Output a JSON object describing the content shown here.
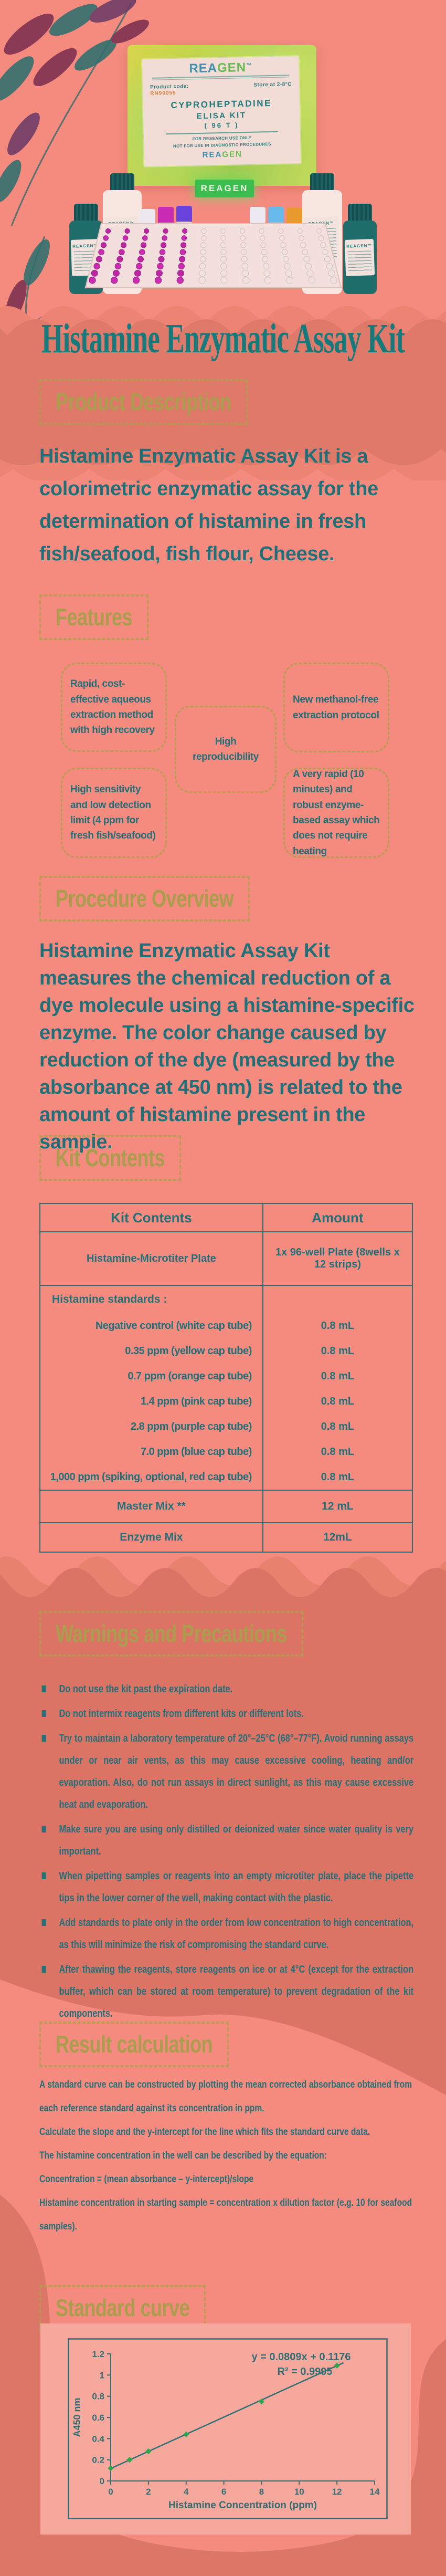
{
  "title": "Histamine Enzymatic Assay Kit",
  "colors": {
    "background_light": "#F48B7E",
    "background_dark": "#DC7667",
    "wave_fringe": "#EC8373",
    "heading_olive": "#AC9D4E",
    "text_teal": "#20707A",
    "table_border": "#2F6E74",
    "chart_point_green": "#2DA84D",
    "well_magenta": "#C72FAE",
    "badge_green": "#3BBE4F"
  },
  "photo": {
    "box": {
      "brand_rea": "REA",
      "brand_gen": "GEN",
      "brand_tm": "™",
      "product_code_label": "Product code:",
      "product_code": "RN99055",
      "store": "Store at 2-8°C",
      "name1": "CYPROHEPTADINE",
      "name2": "ELISA KIT",
      "name3": "( 96 T )",
      "fine1": "FOR RESEARCH USE ONLY",
      "fine2": "NOT FOR USE IN DIAGNOSTIC PROCEDURES",
      "brand2_rea": "REA",
      "brand2_gen": "GEN",
      "badge": "REAGEN"
    },
    "bottle_label": "REAGEN™"
  },
  "product_description": {
    "heading": "Product Description",
    "body": "Histamine Enzymatic Assay Kit is a colorimetric enzymatic assay for the determination of histamine in fresh fish/seafood, fish flour, Cheese."
  },
  "features": {
    "heading": "Features",
    "items": [
      {
        "text": "Rapid, cost-effective aqueous extraction method with high recovery"
      },
      {
        "text": "High reproducibility"
      },
      {
        "text": "New methanol-free extraction protocol"
      },
      {
        "text": "High sensitivity and low detection limit (4 ppm for fresh fish/seafood)"
      },
      {
        "text": "A very rapid (10 minutes) and robust enzyme-based assay which does not require heating"
      }
    ]
  },
  "procedure_overview": {
    "heading": "Procedure Overview",
    "body": "Histamine Enzymatic Assay Kit measures the chemical reduction of a dye molecule using a histamine-specific enzyme. The color change caused by reduction of the dye (measured by the absorbance at 450 nm) is related to the amount of histamine present in the sample."
  },
  "kit_contents": {
    "heading": "Kit Contents",
    "table": {
      "col1": "Kit Contents",
      "col2": "Amount"
    },
    "microtiter": {
      "name": "Histamine-Microtiter Plate",
      "amount": "1x 96-well Plate (8wells x 12 strips)"
    },
    "standards": {
      "label": "Histamine standards :",
      "items": [
        {
          "name": "Negative control (white cap tube)",
          "amount": "0.8 mL"
        },
        {
          "name": "0.35 ppm (yellow cap tube)",
          "amount": "0.8 mL"
        },
        {
          "name": "0.7 ppm (orange cap tube)",
          "amount": "0.8 mL"
        },
        {
          "name": "1.4 ppm (pink cap tube)",
          "amount": "0.8 mL"
        },
        {
          "name": "2.8 ppm (purple cap tube)",
          "amount": "0.8 mL"
        },
        {
          "name": "7.0 ppm (blue cap tube)",
          "amount": "0.8 mL"
        },
        {
          "name": "1,000 ppm (spiking, optional, red cap tube)",
          "amount": "0.8 mL"
        }
      ]
    },
    "master": {
      "name": "Master Mix **",
      "amount": "12 mL"
    },
    "enzyme": {
      "name": "Enzyme Mix",
      "amount": "12mL"
    }
  },
  "warnings": {
    "heading": "Warnings and Precautions",
    "bullets": [
      "Do not use the kit past the expiration date.",
      "Do not intermix reagents from different kits or different lots.",
      "Try to maintain a laboratory temperature of 20°–25°C (68°–77°F). Avoid running assays under or near air vents, as this may cause excessive cooling, heating and/or evaporation. Also, do not run assays in direct sunlight, as this may cause excessive heat and evaporation.",
      "Make sure you are using only distilled or deionized water since water quality is very important.",
      "When pipetting samples or reagents into an empty microtiter plate, place the pipette tips in the lower corner of the well, making contact with the plastic.",
      "Add standards to plate only in the order from low concentration to high concentration, as this will minimize the risk of compromising the standard curve.",
      "After thawing the reagents, store reagents on ice or at 4°C (except for the extraction buffer, which can be stored at room temperature) to prevent degradation of the kit components."
    ]
  },
  "result_calculation": {
    "heading": "Result calculation",
    "paragraphs": [
      "A standard curve can be constructed by plotting the mean corrected absorbance obtained from each reference standard against its concentration in ppm.",
      "Calculate the slope and the y-intercept for the line which fits the standard curve data.",
      "The histamine concentration in the well can be described by the equation:",
      "Concentration = (mean absorbance – y-intercept)/slope",
      "Histamine concentration in starting sample = concentration x dilution factor (e.g. 10 for seafood samples)."
    ]
  },
  "standard_curve": {
    "heading": "Standard curve",
    "chart_data": {
      "type": "scatter",
      "x": [
        0,
        1,
        2,
        4,
        8,
        12
      ],
      "y": [
        0.12,
        0.2,
        0.28,
        0.44,
        0.75,
        1.09
      ],
      "trendline": {
        "slope": 0.0809,
        "intercept": 0.1176,
        "x_start": 0,
        "x_end": 12.35
      },
      "equation_label": "y = 0.0809x + 0.1176",
      "r_squared_label": "R² = 0.9995",
      "xlabel": "Histamine Concentration (ppm)",
      "ylabel": "A450 nm",
      "xlim": [
        0,
        14
      ],
      "ylim": [
        0,
        1.2
      ],
      "xticks": [
        "0",
        "2",
        "4",
        "6",
        "8",
        "10",
        "12",
        "14"
      ],
      "yticks": [
        "0",
        "0.2",
        "0.4",
        "0.6",
        "0.8",
        "1",
        "1.2"
      ],
      "grid": false,
      "legend": "none"
    }
  }
}
